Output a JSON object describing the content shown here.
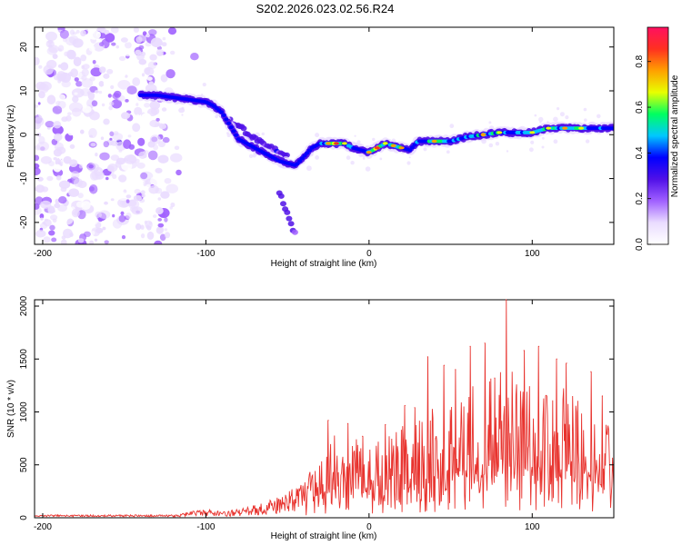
{
  "title": "S202.2026.023.02.56.R24",
  "chart_data": [
    {
      "type": "heatmap",
      "name": "spectrogram",
      "xlabel": "Height of straight line (km)",
      "ylabel": "Frequency (Hz)",
      "xlim": [
        -205,
        150
      ],
      "ylim": [
        -25,
        24.5
      ],
      "xticks": [
        -200,
        -100,
        0,
        100
      ],
      "xtick_labels": [
        "-200",
        "-100",
        "0",
        "100"
      ],
      "yticks": [
        -20,
        -10,
        0,
        10,
        20
      ],
      "ytick_labels": [
        "-20",
        "-10",
        "0",
        "10",
        "20"
      ],
      "colorbar": {
        "label": "Normalized spectral amplitude",
        "range": [
          0,
          0.95
        ],
        "ticks": [
          0,
          0.2,
          0.4,
          0.6,
          0.8
        ],
        "tick_labels": [
          "0.0",
          "0.2",
          "0.4",
          "0.6",
          "0.8"
        ],
        "colors": [
          "#ffffff",
          "#eadcff",
          "#a060ff",
          "#5010e8",
          "#0000ff",
          "#00c8ff",
          "#00ff60",
          "#e8ff00",
          "#ffa000",
          "#ff3020",
          "#ff1060"
        ]
      },
      "ridge": {
        "x": [
          -140,
          -130,
          -120,
          -110,
          -100,
          -95,
          -90,
          -85,
          -80,
          -75,
          -70,
          -65,
          -60,
          -55,
          -50,
          -45,
          -40,
          -35,
          -30,
          -25,
          -20,
          -15,
          -10,
          -5,
          0,
          5,
          10,
          15,
          20,
          25,
          30,
          40,
          50,
          60,
          70,
          80,
          90,
          100,
          110,
          120,
          130,
          140,
          150
        ],
        "y": [
          9,
          9,
          8.5,
          8,
          7.5,
          6.5,
          5,
          2,
          -1,
          -2,
          -3,
          -4,
          -5,
          -6,
          -6.5,
          -7,
          -5,
          -3,
          -2,
          -2,
          -2,
          -2,
          -3,
          -3.5,
          -4,
          -3,
          -2,
          -2.5,
          -3,
          -3.5,
          -1.5,
          -1.5,
          -1.5,
          -0.5,
          0,
          0.5,
          0.5,
          0.5,
          1.5,
          1.5,
          1.5,
          1.5,
          1.5
        ],
        "amplitude": [
          0.35,
          0.4,
          0.45,
          0.5,
          0.55,
          0.45,
          0.35,
          0.3,
          0.35,
          0.4,
          0.45,
          0.35,
          0.4,
          0.45,
          0.5,
          0.55,
          0.45,
          0.5,
          0.6,
          0.75,
          0.9,
          0.7,
          0.6,
          0.6,
          0.75,
          0.85,
          0.7,
          0.75,
          0.8,
          0.6,
          0.55,
          0.8,
          0.65,
          0.6,
          0.8,
          0.7,
          0.65,
          0.7,
          0.7,
          0.75,
          0.7,
          0.65,
          0.6
        ]
      },
      "branches": [
        {
          "x": [
            -90,
            -80,
            -70,
            -60,
            -50
          ],
          "y": [
            4,
            2,
            -1,
            -3,
            -5
          ]
        },
        {
          "x": [
            -55,
            -45
          ],
          "y": [
            -13,
            -23
          ]
        }
      ]
    },
    {
      "type": "line",
      "name": "snr",
      "xlabel": "Height of straight line (km)",
      "ylabel": "SNR (10 * v/v)",
      "xlim": [
        -205,
        150
      ],
      "ylim": [
        0,
        2060
      ],
      "xticks": [
        -200,
        -100,
        0,
        100
      ],
      "xtick_labels": [
        "-200",
        "-100",
        "0",
        "100"
      ],
      "yticks": [
        0,
        500,
        1000,
        1500,
        2000
      ],
      "ytick_labels": [
        "0",
        "500",
        "1000",
        "1500",
        "2000"
      ],
      "color": "#e8332e",
      "envelope_x": [
        -205,
        -160,
        -120,
        -110,
        -100,
        -90,
        -80,
        -70,
        -60,
        -50,
        -40,
        -30,
        -20,
        -10,
        0,
        10,
        20,
        30,
        40,
        50,
        60,
        70,
        80,
        90,
        100,
        110,
        120,
        130,
        140,
        150
      ],
      "envelope_y": [
        15,
        15,
        25,
        60,
        80,
        60,
        80,
        120,
        180,
        250,
        350,
        650,
        800,
        850,
        780,
        750,
        900,
        950,
        1050,
        1100,
        1200,
        1350,
        1500,
        1450,
        1300,
        1250,
        1400,
        1250,
        1100,
        900
      ],
      "peaks": [
        {
          "x": 84,
          "y": 2060
        },
        {
          "x": 71,
          "y": 1650
        },
        {
          "x": 62,
          "y": 1620
        },
        {
          "x": 104,
          "y": 1620
        },
        {
          "x": 95,
          "y": 1580
        },
        {
          "x": 36,
          "y": 1520
        },
        {
          "x": 115,
          "y": 1500
        },
        {
          "x": 121,
          "y": 1460
        },
        {
          "x": 46,
          "y": 1440
        },
        {
          "x": 53,
          "y": 1400
        },
        {
          "x": 136,
          "y": 1380
        },
        {
          "x": 77,
          "y": 1320
        },
        {
          "x": 22,
          "y": 1060
        },
        {
          "x": 143,
          "y": 1150
        },
        {
          "x": 28,
          "y": 1040
        },
        {
          "x": -25,
          "y": 920
        },
        {
          "x": -13,
          "y": 890
        },
        {
          "x": 10,
          "y": 880
        },
        {
          "x": -4,
          "y": 770
        }
      ]
    }
  ]
}
